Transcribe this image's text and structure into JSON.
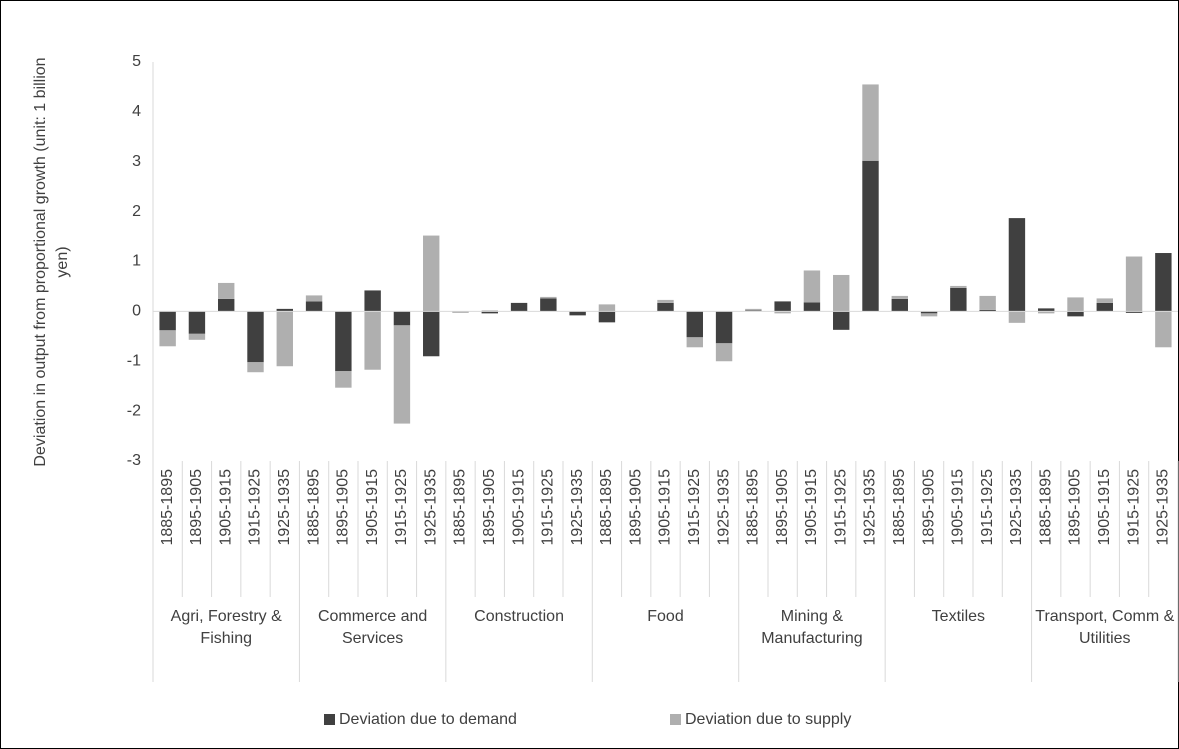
{
  "chart_data": {
    "type": "stacked-bar",
    "y_label": "Deviation in output from proportional growth (unit: 1 billion yen)",
    "groups": [
      "Agri, Forestry & Fishing",
      "Commerce and Services",
      "Construction",
      "Food",
      "Mining & Manufacturing",
      "Textiles",
      "Transport, Comm & Utilities"
    ],
    "categories": [
      "1885-1895",
      "1895-1905",
      "1905-1915",
      "1915-1925",
      "1925-1935",
      "1885-1895",
      "1895-1905",
      "1905-1915",
      "1915-1925",
      "1925-1935",
      "1885-1895",
      "1895-1905",
      "1905-1915",
      "1915-1925",
      "1925-1935",
      "1885-1895",
      "1895-1905",
      "1905-1915",
      "1915-1925",
      "1925-1935",
      "1885-1895",
      "1895-1905",
      "1905-1915",
      "1915-1925",
      "1925-1935",
      "1885-1895",
      "1895-1905",
      "1905-1915",
      "1915-1925",
      "1925-1935",
      "1885-1895",
      "1895-1905",
      "1905-1915",
      "1915-1925",
      "1925-1935"
    ],
    "series": [
      {
        "name": "Deviation due to demand",
        "color": "#404040",
        "values": [
          -0.38,
          -0.45,
          0.25,
          -1.02,
          0.05,
          0.2,
          -1.2,
          0.42,
          -0.28,
          -0.9,
          -0.01,
          -0.04,
          0.17,
          0.26,
          -0.08,
          -0.22,
          0,
          0.17,
          -0.52,
          -0.64,
          0.02,
          0.2,
          0.18,
          -0.37,
          3.02,
          0.25,
          -0.04,
          0.47,
          0.03,
          1.87,
          0.06,
          -0.1,
          0.17,
          -0.03,
          1.17
        ]
      },
      {
        "name": "Deviation due to supply",
        "color": "#afafaf",
        "values": [
          -0.32,
          -0.12,
          0.32,
          -0.2,
          -1.1,
          0.12,
          -0.33,
          -1.17,
          -1.97,
          1.52,
          -0.02,
          0.02,
          0,
          0.03,
          0,
          0.14,
          0,
          0.06,
          -0.2,
          -0.36,
          0.03,
          -0.04,
          0.64,
          0.73,
          1.53,
          0.06,
          -0.06,
          0.04,
          0.28,
          -0.23,
          -0.04,
          0.28,
          0.09,
          1.1,
          -0.72
        ]
      }
    ],
    "ylim": [
      -3,
      5
    ],
    "yticks": [
      -3,
      -2,
      -1,
      0,
      1,
      2,
      3,
      4,
      5
    ],
    "grid": false,
    "legend": "bottom"
  }
}
